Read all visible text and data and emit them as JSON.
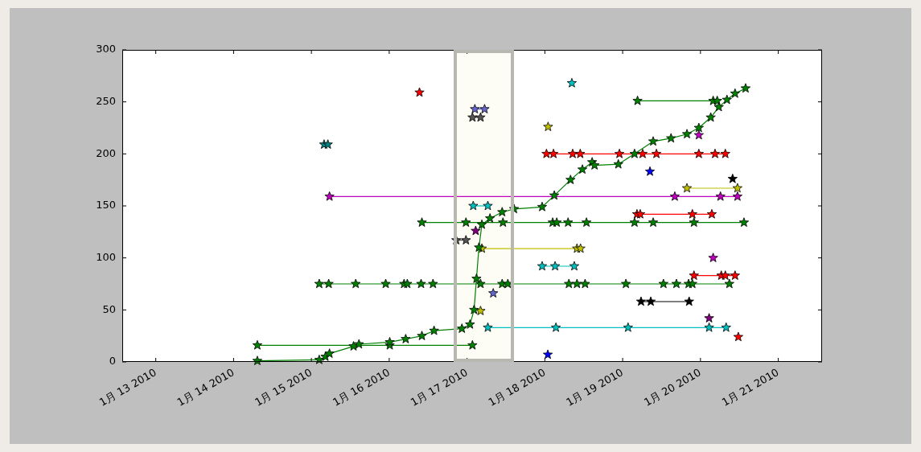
{
  "chart_data": {
    "type": "line",
    "marker": "star",
    "line_style": "solid",
    "grid": false,
    "legend": false,
    "xlim": [
      "2010-01-12T13:40",
      "2010-01-21T13:30"
    ],
    "xticks": [
      {
        "value": "2010-01-13",
        "label": "1月 13 2010"
      },
      {
        "value": "2010-01-14",
        "label": "1月 14 2010"
      },
      {
        "value": "2010-01-15",
        "label": "1月 15 2010"
      },
      {
        "value": "2010-01-16",
        "label": "1月 16 2010"
      },
      {
        "value": "2010-01-17",
        "label": "1月 17 2010"
      },
      {
        "value": "2010-01-18",
        "label": "1月 18 2010"
      },
      {
        "value": "2010-01-19",
        "label": "1月 19 2010"
      },
      {
        "value": "2010-01-20",
        "label": "1月 20 2010"
      },
      {
        "value": "2010-01-21",
        "label": "1月 21 2010"
      }
    ],
    "ylim": [
      0,
      300
    ],
    "yticks": [
      0,
      50,
      100,
      150,
      200,
      250,
      300
    ],
    "bands": [
      {
        "axis": "x",
        "from": "2010-01-16T20:00",
        "to": "2010-01-17T14:30",
        "color": "#fdfdf6"
      }
    ],
    "series": [
      {
        "color": "#008000",
        "x": [
          "2010-01-14T07:20",
          "2010-01-15T02:25",
          "2010-01-15T04:20",
          "2010-01-15T05:35",
          "2010-01-15T13:00",
          "2010-01-15T14:40",
          "2010-01-16T00:10",
          "2010-01-16T05:05",
          "2010-01-16T10:05",
          "2010-01-16T13:50",
          "2010-01-16T22:25",
          "2010-01-17T00:55",
          "2010-01-17T02:10",
          "2010-01-17T02:55",
          "2010-01-17T03:40",
          "2010-01-17T04:35",
          "2010-01-17T07:05",
          "2010-01-17T10:50",
          "2010-01-17T14:30",
          "2010-01-17T23:10",
          "2010-01-18T02:55",
          "2010-01-18T07:55",
          "2010-01-18T11:35",
          "2010-01-18T14:35",
          "2010-01-18T15:20",
          "2010-01-18T22:40",
          "2010-01-19T03:40",
          "2010-01-19T09:25",
          "2010-01-19T14:55",
          "2010-01-19T19:50",
          "2010-01-19T23:30",
          "2010-01-20T03:10",
          "2010-01-20T05:40",
          "2010-01-20T08:10",
          "2010-01-20T10:40",
          "2010-01-20T13:55"
        ],
        "values": [
          1,
          2,
          5,
          8,
          15,
          17,
          19,
          22,
          25,
          30,
          32,
          36,
          50,
          80,
          110,
          132,
          138,
          144,
          147,
          149,
          160,
          175,
          185,
          192,
          189,
          190,
          200,
          212,
          215,
          219,
          225,
          235,
          245,
          252,
          258,
          263
        ]
      },
      {
        "color": "#008000",
        "x": [
          "2010-01-14T07:20",
          "2010-01-16T00:10",
          "2010-01-17T01:40"
        ],
        "values": [
          16,
          16,
          16
        ]
      },
      {
        "color": "#008000",
        "x": [
          "2010-01-15T02:25",
          "2010-01-15T05:20",
          "2010-01-15T13:40",
          "2010-01-15T22:55",
          "2010-01-16T04:35",
          "2010-01-16T05:35",
          "2010-01-16T09:50",
          "2010-01-16T13:30",
          "2010-01-17T04:10",
          "2010-01-17T10:50",
          "2010-01-17T12:35",
          "2010-01-18T07:25",
          "2010-01-18T09:55",
          "2010-01-18T12:25",
          "2010-01-19T01:00",
          "2010-01-19T12:35",
          "2010-01-19T16:35",
          "2010-01-19T20:20",
          "2010-01-19T21:30",
          "2010-01-20T08:55"
        ],
        "values": [
          75,
          75,
          75,
          75,
          75,
          75,
          75,
          75,
          75,
          75,
          75,
          75,
          75,
          75,
          75,
          75,
          75,
          75,
          75,
          75
        ]
      },
      {
        "color": "#008000",
        "x": [
          "2010-01-16T10:05",
          "2010-01-16T23:40",
          "2010-01-17T11:05",
          "2010-01-18T02:25",
          "2010-01-18T03:40",
          "2010-01-18T07:10",
          "2010-01-18T12:50",
          "2010-01-19T03:40",
          "2010-01-19T09:25",
          "2010-01-19T22:00",
          "2010-01-20T13:25"
        ],
        "values": [
          134,
          134,
          134,
          134,
          134,
          134,
          134,
          134,
          134,
          134,
          134
        ]
      },
      {
        "color": "#008000",
        "x": [
          "2010-01-19T04:35",
          "2010-01-20T03:55",
          "2010-01-20T05:10"
        ],
        "values": [
          251,
          251,
          251
        ]
      },
      {
        "color": "#bf00bf",
        "x": [
          "2010-01-15T05:35",
          "2010-01-19T16:05",
          "2010-01-20T06:10",
          "2010-01-20T11:25"
        ],
        "values": [
          159,
          159,
          159,
          159
        ]
      },
      {
        "color": "#ff0000",
        "x": [
          "2010-01-18T00:30",
          "2010-01-18T02:40",
          "2010-01-18T08:35",
          "2010-01-18T10:55",
          "2010-01-18T23:00",
          "2010-01-19T06:10",
          "2010-01-19T10:25",
          "2010-01-19T23:30",
          "2010-01-20T04:30",
          "2010-01-20T07:40"
        ],
        "values": [
          200,
          200,
          200,
          200,
          200,
          200,
          200,
          200,
          200,
          200
        ]
      },
      {
        "color": "#ff0000",
        "x": [
          "2010-01-19T04:25",
          "2010-01-19T05:25",
          "2010-01-19T21:30",
          "2010-01-20T03:30"
        ],
        "values": [
          142,
          142,
          142,
          142
        ]
      },
      {
        "color": "#bfbf00",
        "x": [
          "2010-01-19T19:50",
          "2010-01-20T11:25"
        ],
        "values": [
          167,
          167
        ]
      },
      {
        "color": "#bfbf00",
        "x": [
          "2010-01-17T04:35",
          "2010-01-18T09:55",
          "2010-01-18T11:00"
        ],
        "values": [
          109,
          109,
          109
        ]
      },
      {
        "color": "#00bfbf",
        "x": [
          "2010-01-17T23:10",
          "2010-01-18T03:10",
          "2010-01-18T09:05"
        ],
        "values": [
          92,
          92,
          92
        ]
      },
      {
        "color": "#00bfbf",
        "x": [
          "2010-01-17T06:25",
          "2010-01-18T03:25",
          "2010-01-19T01:40",
          "2010-01-20T02:40",
          "2010-01-20T07:55"
        ],
        "values": [
          33,
          33,
          33,
          33,
          33
        ]
      },
      {
        "color": "#ff0000",
        "x": [
          "2010-01-19T22:00",
          "2010-01-20T06:25",
          "2010-01-20T07:40",
          "2010-01-20T10:40"
        ],
        "values": [
          83,
          83,
          83,
          83
        ]
      },
      {
        "color": "#000000",
        "x": [
          "2010-01-19T05:40",
          "2010-01-19T08:40",
          "2010-01-19T20:30"
        ],
        "values": [
          58,
          58,
          58
        ]
      },
      {
        "color": "#555555",
        "x": [
          "2010-01-16T20:40",
          "2010-01-16T23:40"
        ],
        "values": [
          117,
          117
        ]
      },
      {
        "color": "#555555",
        "x": [
          "2010-01-17T01:40",
          "2010-01-17T04:10"
        ],
        "values": [
          235,
          235
        ]
      },
      {
        "color": "#6666cc",
        "x": [
          "2010-01-17T02:25",
          "2010-01-17T05:25"
        ],
        "values": [
          243,
          243
        ]
      },
      {
        "color": "#00bfbf",
        "x": [
          "2010-01-17T01:55",
          "2010-01-17T06:25"
        ],
        "values": [
          150,
          150
        ]
      },
      {
        "type": "scatter",
        "color": "#008080",
        "x": [
          "2010-01-15T03:55",
          "2010-01-15T05:05"
        ],
        "values": [
          209,
          209
        ]
      },
      {
        "color": "#ff0000",
        "x": [
          "2010-01-16T09:20"
        ],
        "values": [
          259
        ]
      },
      {
        "color": "#00bfbf",
        "x": [
          "2010-01-18T08:20"
        ],
        "values": [
          268
        ]
      },
      {
        "color": "#bfbf00",
        "x": [
          "2010-01-18T01:00"
        ],
        "values": [
          226
        ]
      },
      {
        "color": "#bf00bf",
        "x": [
          "2010-01-19T23:30"
        ],
        "values": [
          218
        ]
      },
      {
        "color": "#0000ff",
        "x": [
          "2010-01-19T08:25"
        ],
        "values": [
          183
        ]
      },
      {
        "color": "#000000",
        "x": [
          "2010-01-20T09:55"
        ],
        "values": [
          176
        ]
      },
      {
        "color": "#bf00bf",
        "x": [
          "2010-01-20T03:55"
        ],
        "values": [
          100
        ]
      },
      {
        "color": "#800080",
        "x": [
          "2010-01-20T02:40"
        ],
        "values": [
          42
        ]
      },
      {
        "color": "#ff0000",
        "x": [
          "2010-01-20T11:40"
        ],
        "values": [
          24
        ]
      },
      {
        "color": "#0000ff",
        "x": [
          "2010-01-18T00:55"
        ],
        "values": [
          7
        ]
      },
      {
        "color": "#6666cc",
        "x": [
          "2010-01-17T08:05"
        ],
        "values": [
          66
        ]
      },
      {
        "color": "#800080",
        "x": [
          "2010-01-17T02:40"
        ],
        "values": [
          126
        ]
      },
      {
        "color": "#bfbf00",
        "x": [
          "2010-01-17T04:10"
        ],
        "values": [
          49
        ]
      }
    ]
  }
}
